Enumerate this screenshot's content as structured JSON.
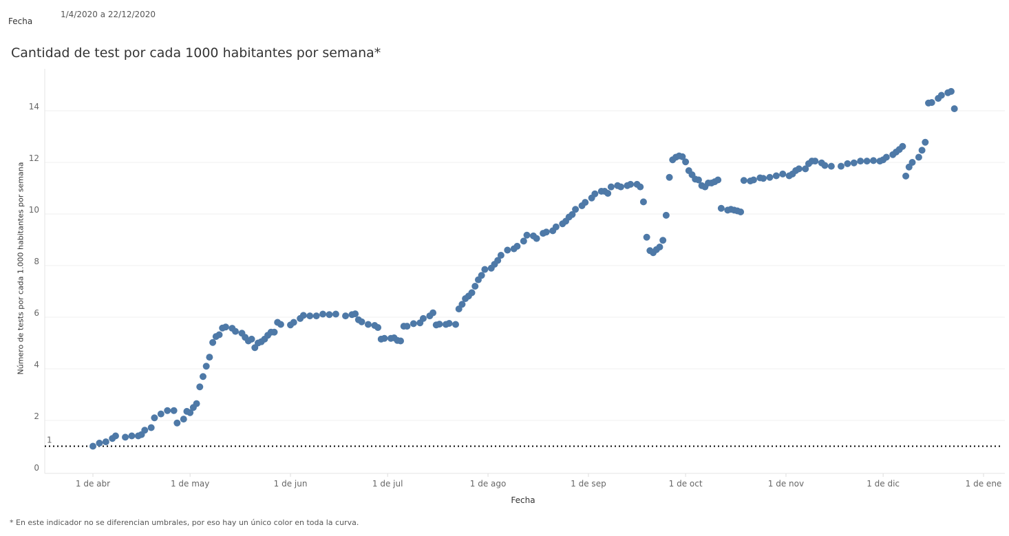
{
  "filter": {
    "label": "Fecha",
    "value": "1/4/2020 a 22/12/2020"
  },
  "footnote": "* En este indicador no se diferencian umbrales, por eso hay un único color en toda la curva.",
  "chart_data": {
    "type": "scatter",
    "title": "Cantidad de test por cada 1000 habitantes por semana*",
    "xlabel": "Fecha",
    "ylabel": "Número de tests por cada 1.000 habitantes por semana",
    "x_origin": "2020-04-01",
    "x_unit": "days since x_origin",
    "xlim": [
      -14,
      285
    ],
    "ylim": [
      0,
      15
    ],
    "x_ticks": [
      {
        "day": 0,
        "label": "1 de abr"
      },
      {
        "day": 30,
        "label": "1 de may"
      },
      {
        "day": 61,
        "label": "1 de jun"
      },
      {
        "day": 91,
        "label": "1 de jul"
      },
      {
        "day": 122,
        "label": "1 de ago"
      },
      {
        "day": 153,
        "label": "1 de sep"
      },
      {
        "day": 183,
        "label": "1 de oct"
      },
      {
        "day": 214,
        "label": "1 de nov"
      },
      {
        "day": 244,
        "label": "1 de dic"
      },
      {
        "day": 275,
        "label": "1 de ene"
      }
    ],
    "y_ticks": [
      0,
      2,
      4,
      6,
      8,
      10,
      12,
      14
    ],
    "reference_line": {
      "value": 1,
      "label": "1",
      "style": "dotted"
    },
    "grid": true,
    "color": "#4e79a7",
    "points": [
      [
        0,
        1.0
      ],
      [
        2,
        1.12
      ],
      [
        4,
        1.17
      ],
      [
        6,
        1.3
      ],
      [
        7,
        1.4
      ],
      [
        10,
        1.35
      ],
      [
        12,
        1.4
      ],
      [
        14,
        1.4
      ],
      [
        15,
        1.45
      ],
      [
        16,
        1.62
      ],
      [
        18,
        1.72
      ],
      [
        19,
        2.1
      ],
      [
        21,
        2.25
      ],
      [
        23,
        2.38
      ],
      [
        25,
        2.38
      ],
      [
        26,
        1.9
      ],
      [
        28,
        2.05
      ],
      [
        29,
        2.35
      ],
      [
        30,
        2.3
      ],
      [
        31,
        2.5
      ],
      [
        32,
        2.65
      ],
      [
        33,
        3.3
      ],
      [
        34,
        3.7
      ],
      [
        35,
        4.1
      ],
      [
        36,
        4.45
      ],
      [
        37,
        5.02
      ],
      [
        38,
        5.25
      ],
      [
        39,
        5.32
      ],
      [
        40,
        5.58
      ],
      [
        41,
        5.62
      ],
      [
        43,
        5.57
      ],
      [
        44,
        5.45
      ],
      [
        46,
        5.38
      ],
      [
        47,
        5.22
      ],
      [
        48,
        5.08
      ],
      [
        49,
        5.15
      ],
      [
        50,
        4.82
      ],
      [
        51,
        5.0
      ],
      [
        52,
        5.05
      ],
      [
        53,
        5.15
      ],
      [
        54,
        5.3
      ],
      [
        55,
        5.42
      ],
      [
        56,
        5.42
      ],
      [
        57,
        5.8
      ],
      [
        58,
        5.72
      ],
      [
        61,
        5.7
      ],
      [
        62,
        5.8
      ],
      [
        64,
        5.95
      ],
      [
        65,
        6.07
      ],
      [
        67,
        6.05
      ],
      [
        69,
        6.05
      ],
      [
        71,
        6.12
      ],
      [
        73,
        6.1
      ],
      [
        75,
        6.12
      ],
      [
        78,
        6.05
      ],
      [
        80,
        6.1
      ],
      [
        81,
        6.13
      ],
      [
        82,
        5.9
      ],
      [
        83,
        5.82
      ],
      [
        85,
        5.72
      ],
      [
        87,
        5.68
      ],
      [
        88,
        5.6
      ],
      [
        89,
        5.15
      ],
      [
        90,
        5.18
      ],
      [
        92,
        5.18
      ],
      [
        93,
        5.2
      ],
      [
        94,
        5.1
      ],
      [
        95,
        5.08
      ],
      [
        96,
        5.65
      ],
      [
        97,
        5.65
      ],
      [
        99,
        5.75
      ],
      [
        101,
        5.78
      ],
      [
        102,
        5.95
      ],
      [
        104,
        6.05
      ],
      [
        105,
        6.17
      ],
      [
        106,
        5.7
      ],
      [
        107,
        5.73
      ],
      [
        109,
        5.72
      ],
      [
        110,
        5.76
      ],
      [
        112,
        5.72
      ],
      [
        113,
        6.32
      ],
      [
        114,
        6.5
      ],
      [
        115,
        6.72
      ],
      [
        116,
        6.82
      ],
      [
        117,
        6.95
      ],
      [
        118,
        7.2
      ],
      [
        119,
        7.45
      ],
      [
        120,
        7.62
      ],
      [
        121,
        7.85
      ],
      [
        123,
        7.9
      ],
      [
        124,
        8.05
      ],
      [
        125,
        8.2
      ],
      [
        126,
        8.4
      ],
      [
        128,
        8.6
      ],
      [
        130,
        8.65
      ],
      [
        131,
        8.75
      ],
      [
        133,
        8.95
      ],
      [
        134,
        9.18
      ],
      [
        136,
        9.15
      ],
      [
        137,
        9.05
      ],
      [
        139,
        9.25
      ],
      [
        140,
        9.3
      ],
      [
        142,
        9.35
      ],
      [
        143,
        9.5
      ],
      [
        145,
        9.62
      ],
      [
        146,
        9.72
      ],
      [
        147,
        9.88
      ],
      [
        148,
        9.98
      ],
      [
        149,
        10.18
      ],
      [
        151,
        10.32
      ],
      [
        152,
        10.45
      ],
      [
        154,
        10.62
      ],
      [
        155,
        10.78
      ],
      [
        157,
        10.88
      ],
      [
        158,
        10.88
      ],
      [
        159,
        10.8
      ],
      [
        160,
        11.05
      ],
      [
        162,
        11.1
      ],
      [
        163,
        11.05
      ],
      [
        165,
        11.1
      ],
      [
        166,
        11.15
      ],
      [
        168,
        11.15
      ],
      [
        169,
        11.05
      ],
      [
        170,
        10.47
      ],
      [
        171,
        9.1
      ],
      [
        172,
        8.58
      ],
      [
        173,
        8.5
      ],
      [
        174,
        8.62
      ],
      [
        175,
        8.72
      ],
      [
        176,
        8.98
      ],
      [
        177,
        9.95
      ],
      [
        178,
        11.42
      ],
      [
        179,
        12.1
      ],
      [
        180,
        12.2
      ],
      [
        181,
        12.25
      ],
      [
        182,
        12.22
      ],
      [
        183,
        12.02
      ],
      [
        184,
        11.68
      ],
      [
        185,
        11.52
      ],
      [
        186,
        11.35
      ],
      [
        187,
        11.32
      ],
      [
        188,
        11.1
      ],
      [
        189,
        11.05
      ],
      [
        190,
        11.2
      ],
      [
        191,
        11.2
      ],
      [
        192,
        11.25
      ],
      [
        193,
        11.32
      ],
      [
        194,
        10.22
      ],
      [
        196,
        10.15
      ],
      [
        197,
        10.18
      ],
      [
        198,
        10.15
      ],
      [
        199,
        10.12
      ],
      [
        200,
        10.08
      ],
      [
        201,
        11.3
      ],
      [
        203,
        11.28
      ],
      [
        204,
        11.32
      ],
      [
        206,
        11.4
      ],
      [
        207,
        11.38
      ],
      [
        209,
        11.42
      ],
      [
        211,
        11.48
      ],
      [
        213,
        11.55
      ],
      [
        215,
        11.48
      ],
      [
        216,
        11.55
      ],
      [
        217,
        11.68
      ],
      [
        218,
        11.75
      ],
      [
        220,
        11.75
      ],
      [
        221,
        11.95
      ],
      [
        222,
        12.05
      ],
      [
        223,
        12.05
      ],
      [
        225,
        11.98
      ],
      [
        226,
        11.88
      ],
      [
        228,
        11.85
      ],
      [
        231,
        11.85
      ],
      [
        233,
        11.95
      ],
      [
        235,
        11.98
      ],
      [
        237,
        12.05
      ],
      [
        239,
        12.05
      ],
      [
        241,
        12.07
      ],
      [
        243,
        12.05
      ],
      [
        244,
        12.1
      ],
      [
        245,
        12.2
      ],
      [
        247,
        12.3
      ],
      [
        248,
        12.4
      ],
      [
        249,
        12.5
      ],
      [
        250,
        12.62
      ],
      [
        251,
        11.47
      ],
      [
        252,
        11.82
      ],
      [
        253,
        12.0
      ],
      [
        255,
        12.2
      ],
      [
        256,
        12.47
      ],
      [
        257,
        12.78
      ],
      [
        258,
        14.3
      ],
      [
        259,
        14.32
      ],
      [
        261,
        14.48
      ],
      [
        262,
        14.6
      ],
      [
        264,
        14.7
      ],
      [
        265,
        14.75
      ],
      [
        266,
        14.08
      ]
    ]
  }
}
